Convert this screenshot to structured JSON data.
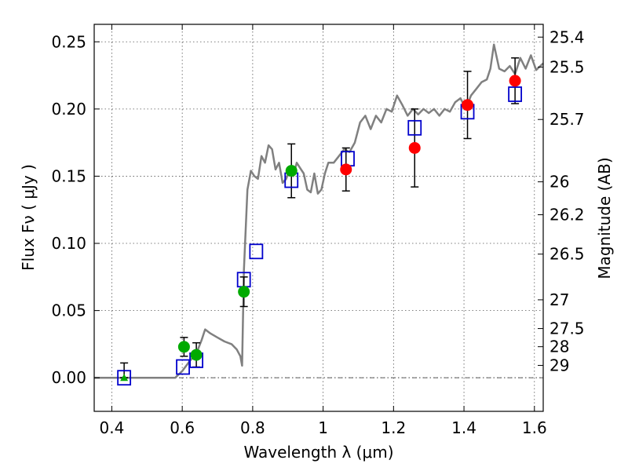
{
  "chart_data": {
    "type": "scatter",
    "xlabel": "Wavelength  λ (μm)",
    "ylabel": "Flux  Fν  ( μJy )",
    "ylabel_right": "Magnitude (AB)",
    "xlim": [
      0.35,
      1.625
    ],
    "ylim": [
      -0.025,
      0.263
    ],
    "x_ticks": [
      0.4,
      0.6,
      0.8,
      1.0,
      1.2,
      1.4,
      1.6
    ],
    "x_tick_labels": [
      "0.4",
      "0.6",
      "0.8",
      "1",
      "1.2",
      "1.4",
      "1.6"
    ],
    "y_ticks": [
      0.0,
      0.05,
      0.1,
      0.15,
      0.2,
      0.25
    ],
    "y_tick_labels": [
      "0.00",
      "0.05",
      "0.10",
      "0.15",
      "0.20",
      "0.25"
    ],
    "right_ticks": [
      {
        "label": "25.4",
        "flux": 0.2535
      },
      {
        "label": "25.5",
        "flux": 0.2312
      },
      {
        "label": "25.7",
        "flux": 0.1922
      },
      {
        "label": "26",
        "flux": 0.1458
      },
      {
        "label": "26.2",
        "flux": 0.1213
      },
      {
        "label": "26.5",
        "flux": 0.092
      },
      {
        "label": "27",
        "flux": 0.058
      },
      {
        "label": "27.5",
        "flux": 0.0366
      },
      {
        "label": "28",
        "flux": 0.0231
      },
      {
        "label": "29",
        "flux": 0.0092
      }
    ],
    "grid": true,
    "series": [
      {
        "kind": "line",
        "color": "#808080",
        "x": [
          0.35,
          0.58,
          0.6,
          0.62,
          0.64,
          0.655,
          0.665,
          0.68,
          0.7,
          0.72,
          0.74,
          0.755,
          0.765,
          0.77,
          0.775,
          0.785,
          0.795,
          0.805,
          0.815,
          0.825,
          0.835,
          0.845,
          0.855,
          0.865,
          0.875,
          0.885,
          0.895,
          0.905,
          0.915,
          0.925,
          0.935,
          0.945,
          0.955,
          0.965,
          0.975,
          0.985,
          0.995,
          1.005,
          1.015,
          1.03,
          1.045,
          1.06,
          1.075,
          1.09,
          1.105,
          1.12,
          1.135,
          1.15,
          1.165,
          1.18,
          1.195,
          1.21,
          1.225,
          1.24,
          1.255,
          1.27,
          1.285,
          1.3,
          1.315,
          1.33,
          1.345,
          1.36,
          1.375,
          1.39,
          1.405,
          1.42,
          1.435,
          1.45,
          1.465,
          1.475,
          1.485,
          1.5,
          1.515,
          1.53,
          1.545,
          1.56,
          1.575,
          1.59,
          1.605,
          1.625
        ],
        "y": [
          0.0,
          0.0,
          0.005,
          0.012,
          0.018,
          0.028,
          0.036,
          0.033,
          0.03,
          0.027,
          0.025,
          0.021,
          0.016,
          0.009,
          0.08,
          0.14,
          0.154,
          0.15,
          0.148,
          0.165,
          0.16,
          0.173,
          0.17,
          0.155,
          0.16,
          0.145,
          0.148,
          0.155,
          0.15,
          0.16,
          0.156,
          0.152,
          0.14,
          0.138,
          0.152,
          0.137,
          0.14,
          0.152,
          0.16,
          0.16,
          0.165,
          0.17,
          0.168,
          0.175,
          0.19,
          0.195,
          0.185,
          0.195,
          0.19,
          0.2,
          0.198,
          0.21,
          0.203,
          0.195,
          0.2,
          0.196,
          0.2,
          0.197,
          0.2,
          0.195,
          0.2,
          0.198,
          0.205,
          0.208,
          0.2,
          0.21,
          0.215,
          0.22,
          0.222,
          0.23,
          0.248,
          0.23,
          0.228,
          0.232,
          0.226,
          0.238,
          0.23,
          0.24,
          0.229,
          0.234
        ]
      },
      {
        "kind": "open-square",
        "color": "#0000cc",
        "x": [
          0.435,
          0.602,
          0.64,
          0.775,
          0.81,
          0.91,
          1.07,
          1.26,
          1.41,
          1.545
        ],
        "y": [
          0.0,
          0.008,
          0.013,
          0.073,
          0.094,
          0.147,
          0.163,
          0.186,
          0.198,
          0.211
        ]
      },
      {
        "kind": "filled-circle",
        "color": "#00aa00",
        "x": [
          0.605,
          0.64,
          0.775,
          0.91
        ],
        "y": [
          0.023,
          0.017,
          0.064,
          0.154
        ],
        "err": [
          0.007,
          0.009,
          0.011,
          0.02
        ]
      },
      {
        "kind": "filled-circle",
        "color": "#ff0000",
        "x": [
          1.065,
          1.26,
          1.41,
          1.545
        ],
        "y": [
          0.155,
          0.171,
          0.203,
          0.221
        ],
        "err": [
          0.016,
          0.029,
          0.025,
          0.017
        ]
      },
      {
        "kind": "triangle",
        "color": "#00aa00",
        "x": [
          0.435
        ],
        "y": [
          0.0
        ],
        "err_high": [
          0.011
        ]
      }
    ]
  }
}
